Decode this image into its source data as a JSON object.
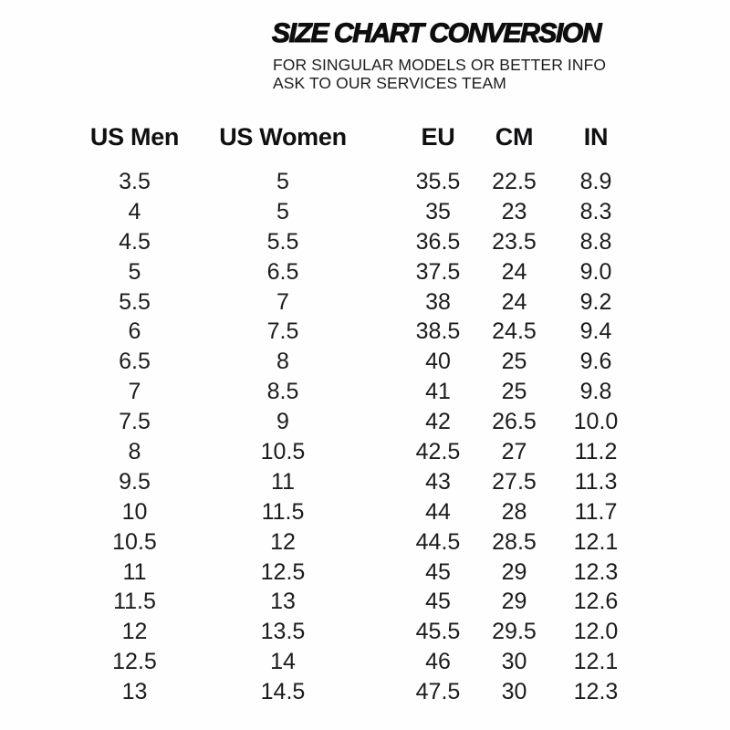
{
  "header": {
    "title": "SIZE CHART CONVERSION",
    "subtitle_line1": "FOR SINGULAR MODELS OR BETTER INFO",
    "subtitle_line2": "ASK TO OUR SERVICES TEAM"
  },
  "colors": {
    "background": "#ffffff",
    "text": "#161616"
  },
  "chart_data": {
    "type": "table",
    "title": "SIZE CHART CONVERSION",
    "subtitle": "FOR SINGULAR MODELS OR BETTER INFO ASK TO OUR SERVICES TEAM",
    "columns": [
      "US Men",
      "US Women",
      "EU",
      "CM",
      "IN"
    ],
    "rows": [
      [
        "3.5",
        "5",
        "35.5",
        "22.5",
        "8.9"
      ],
      [
        "4",
        "5",
        "35",
        "23",
        "8.3"
      ],
      [
        "4.5",
        "5.5",
        "36.5",
        "23.5",
        "8.8"
      ],
      [
        "5",
        "6.5",
        "37.5",
        "24",
        "9.0"
      ],
      [
        "5.5",
        "7",
        "38",
        "24",
        "9.2"
      ],
      [
        "6",
        "7.5",
        "38.5",
        "24.5",
        "9.4"
      ],
      [
        "6.5",
        "8",
        "40",
        "25",
        "9.6"
      ],
      [
        "7",
        "8.5",
        "41",
        "25",
        "9.8"
      ],
      [
        "7.5",
        "9",
        "42",
        "26.5",
        "10.0"
      ],
      [
        "8",
        "10.5",
        "42.5",
        "27",
        "11.2"
      ],
      [
        "9.5",
        "11",
        "43",
        "27.5",
        "11.3"
      ],
      [
        "10",
        "11.5",
        "44",
        "28",
        "11.7"
      ],
      [
        "10.5",
        "12",
        "44.5",
        "28.5",
        "12.1"
      ],
      [
        "11",
        "12.5",
        "45",
        "29",
        "12.3"
      ],
      [
        "11.5",
        "13",
        "45",
        "29",
        "12.6"
      ],
      [
        "12",
        "13.5",
        "45.5",
        "29.5",
        "12.0"
      ],
      [
        "12.5",
        "14",
        "46",
        "30",
        "12.1"
      ],
      [
        "13",
        "14.5",
        "47.5",
        "30",
        "12.3"
      ]
    ],
    "layout": {
      "grid": false,
      "borders": false,
      "header_position": "top",
      "value_alignment": "center"
    }
  }
}
